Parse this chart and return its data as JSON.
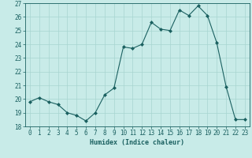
{
  "x": [
    0,
    1,
    2,
    3,
    4,
    5,
    6,
    7,
    8,
    9,
    10,
    11,
    12,
    13,
    14,
    15,
    16,
    17,
    18,
    19,
    20,
    21,
    22,
    23
  ],
  "y": [
    19.8,
    20.1,
    19.8,
    19.6,
    19.0,
    18.8,
    18.4,
    19.0,
    20.3,
    20.8,
    23.8,
    23.7,
    24.0,
    25.6,
    25.1,
    25.0,
    26.5,
    26.1,
    26.8,
    26.1,
    24.1,
    20.9,
    18.5,
    18.5
  ],
  "line_color": "#1a6060",
  "marker": "D",
  "marker_size": 2,
  "bg_color": "#c8ebe8",
  "grid_color": "#a8d5d0",
  "xlabel": "Humidex (Indice chaleur)",
  "ylim": [
    18,
    27
  ],
  "xlim": [
    -0.5,
    23.5
  ],
  "yticks": [
    18,
    19,
    20,
    21,
    22,
    23,
    24,
    25,
    26,
    27
  ],
  "xticks": [
    0,
    1,
    2,
    3,
    4,
    5,
    6,
    7,
    8,
    9,
    10,
    11,
    12,
    13,
    14,
    15,
    16,
    17,
    18,
    19,
    20,
    21,
    22,
    23
  ],
  "axis_color": "#1a6060",
  "label_fontsize": 6.0,
  "tick_fontsize": 5.5
}
